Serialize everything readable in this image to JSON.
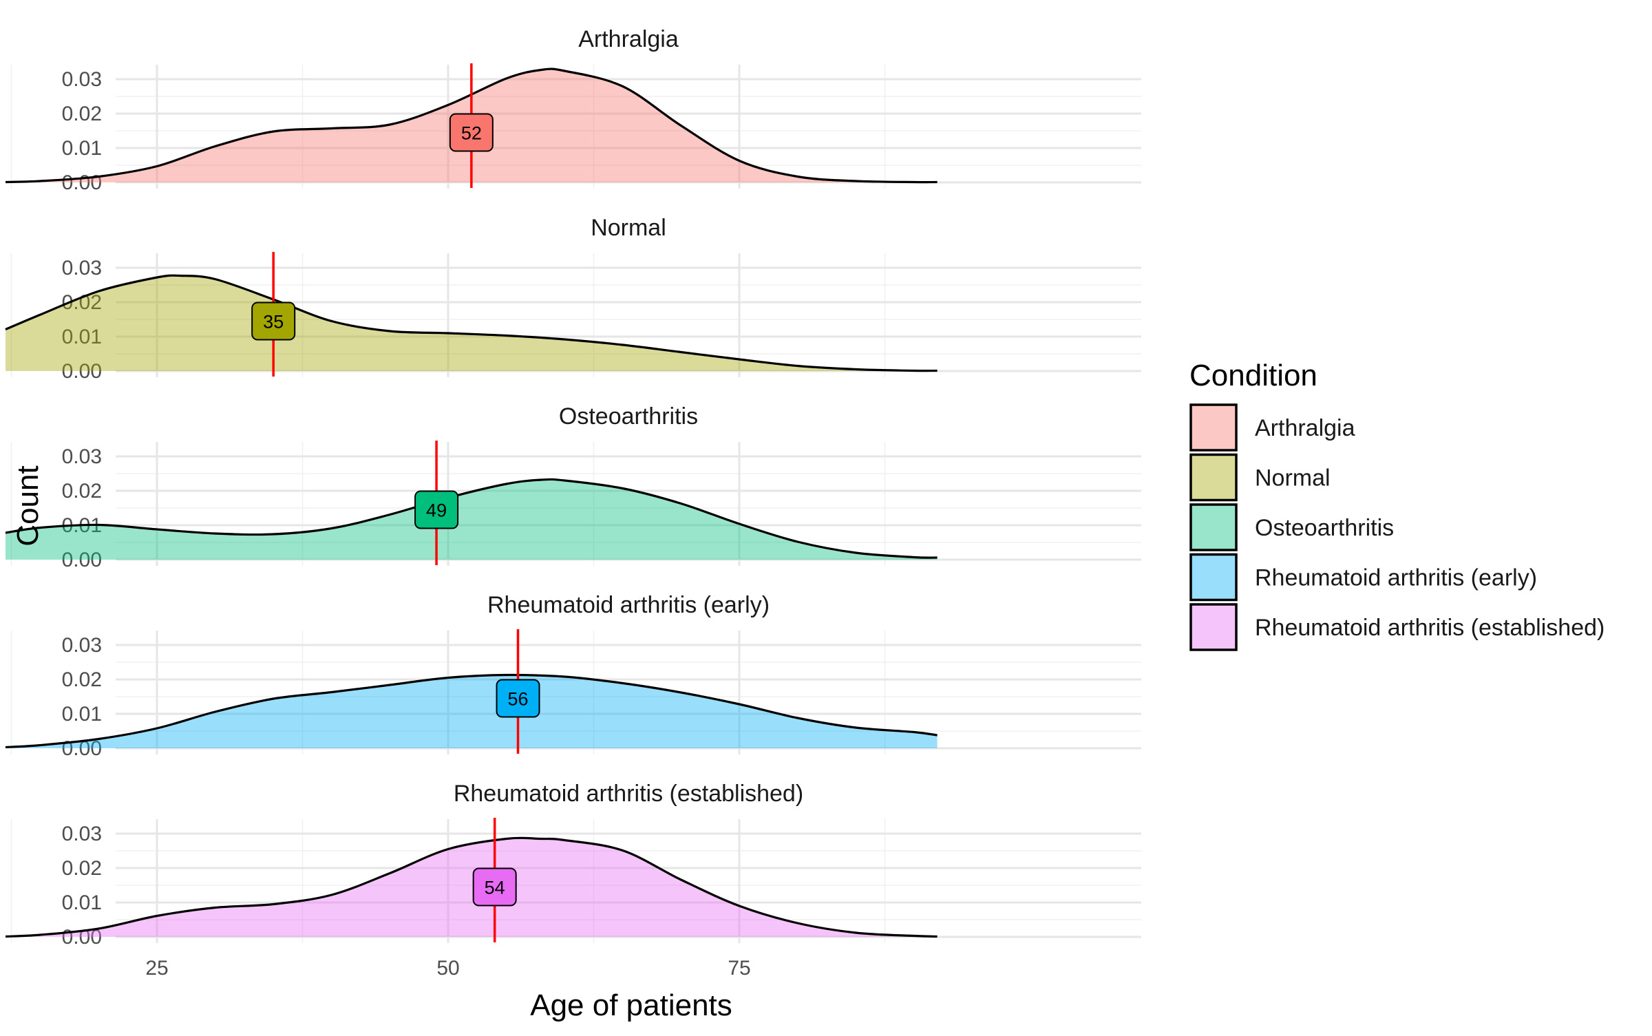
{
  "chart_data": {
    "type": "area",
    "title": "",
    "xlabel": "Age of patients",
    "ylabel": "Count",
    "xlim": [
      11,
      93
    ],
    "ylim": [
      0,
      0.034
    ],
    "x_ticks": [
      25,
      50,
      75
    ],
    "y_ticks": [
      0.0,
      0.01,
      0.02,
      0.03
    ],
    "y_tick_labels": [
      "0.00",
      "0.01",
      "0.02",
      "0.03"
    ],
    "grid": true,
    "legend": {
      "title": "Condition",
      "position": "right"
    },
    "median_line_color": "#ff0000",
    "series": [
      {
        "name": "Arthralgia",
        "fill": "#F8766D",
        "median": 52,
        "x": [
          12,
          15,
          20,
          25,
          30,
          35,
          40,
          45,
          50,
          55,
          58,
          60,
          65,
          70,
          75,
          80,
          85,
          90,
          92
        ],
        "y": [
          0.0001,
          0.0004,
          0.0017,
          0.0047,
          0.0105,
          0.0148,
          0.0157,
          0.0168,
          0.0225,
          0.0302,
          0.0327,
          0.0324,
          0.0279,
          0.0165,
          0.0063,
          0.0017,
          0.0004,
          0.0001,
          0.0001
        ]
      },
      {
        "name": "Normal",
        "fill": "#A3A500",
        "median": 35,
        "x": [
          12,
          15,
          20,
          25,
          27,
          30,
          35,
          40,
          45,
          50,
          55,
          60,
          65,
          70,
          75,
          80,
          85,
          90,
          92
        ],
        "y": [
          0.0121,
          0.0164,
          0.0232,
          0.0272,
          0.0277,
          0.0267,
          0.0208,
          0.0145,
          0.0116,
          0.011,
          0.0103,
          0.0092,
          0.0076,
          0.0055,
          0.0034,
          0.0015,
          0.0005,
          0.0001,
          0.0001
        ]
      },
      {
        "name": "Osteoarthritis",
        "fill": "#00BF7D",
        "median": 49,
        "x": [
          12,
          15,
          20,
          25,
          30,
          35,
          40,
          45,
          50,
          55,
          58,
          60,
          65,
          70,
          75,
          80,
          85,
          90,
          92
        ],
        "y": [
          0.0078,
          0.0093,
          0.0101,
          0.0088,
          0.0076,
          0.0074,
          0.0091,
          0.0131,
          0.018,
          0.022,
          0.0232,
          0.023,
          0.0207,
          0.0163,
          0.0104,
          0.0052,
          0.002,
          0.0007,
          0.0006
        ]
      },
      {
        "name": "Rheumatoid arthritis (early)",
        "fill": "#00B0F6",
        "median": 56,
        "x": [
          12,
          15,
          20,
          25,
          30,
          35,
          40,
          45,
          50,
          55,
          60,
          65,
          70,
          75,
          80,
          85,
          90,
          92
        ],
        "y": [
          0.0003,
          0.0009,
          0.0027,
          0.0058,
          0.0106,
          0.0144,
          0.0163,
          0.0184,
          0.0205,
          0.0213,
          0.0208,
          0.0189,
          0.0162,
          0.0128,
          0.0088,
          0.006,
          0.0047,
          0.0038
        ]
      },
      {
        "name": "Rheumatoid arthritis (established)",
        "fill": "#E76BF3",
        "median": 54,
        "x": [
          12,
          15,
          20,
          25,
          30,
          35,
          40,
          45,
          50,
          55,
          58,
          60,
          65,
          70,
          75,
          80,
          85,
          90,
          92
        ],
        "y": [
          0.0001,
          0.0006,
          0.0024,
          0.0061,
          0.0085,
          0.0095,
          0.0122,
          0.0185,
          0.0255,
          0.0285,
          0.0285,
          0.0281,
          0.0251,
          0.0166,
          0.009,
          0.004,
          0.0012,
          0.0003,
          0.0001
        ]
      }
    ]
  }
}
